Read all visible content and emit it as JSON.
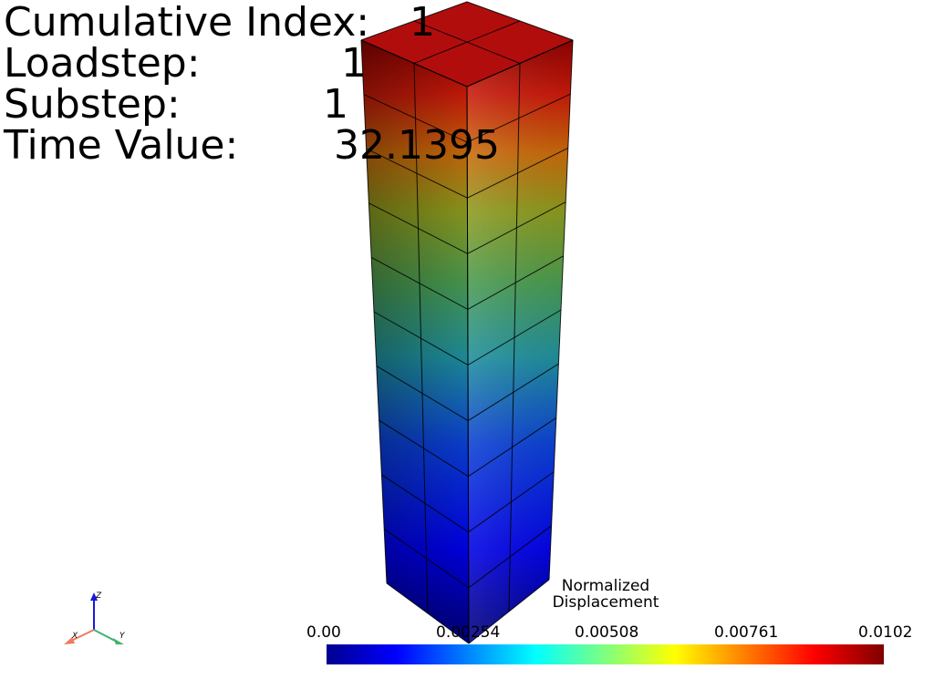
{
  "info": {
    "cumulative_index_label": "Cumulative Index:",
    "cumulative_index_value": "1",
    "loadstep_label": "Loadstep:",
    "loadstep_value": "1",
    "substep_label": "Substep:",
    "substep_value": "1",
    "time_value_label": "Time Value:",
    "time_value_value": "32.1395"
  },
  "colorbar": {
    "title_line1": "Normalized",
    "title_line2": "Displacement",
    "ticks": [
      "0.00",
      "0.00254",
      "0.00508",
      "0.00761",
      "0.0102"
    ],
    "colors": [
      "#00008f",
      "#0000ff",
      "#00ffff",
      "#ffff00",
      "#ff0000",
      "#800000"
    ]
  },
  "axes": {
    "x": "X",
    "y": "Y",
    "z": "Z",
    "x_color": "#f07a5c",
    "y_color": "#3fb46c",
    "z_color": "#1a1ad8"
  },
  "mesh": {
    "edge_color": "#000000",
    "elements_x": 2,
    "elements_y": 2,
    "elements_z": 10
  }
}
